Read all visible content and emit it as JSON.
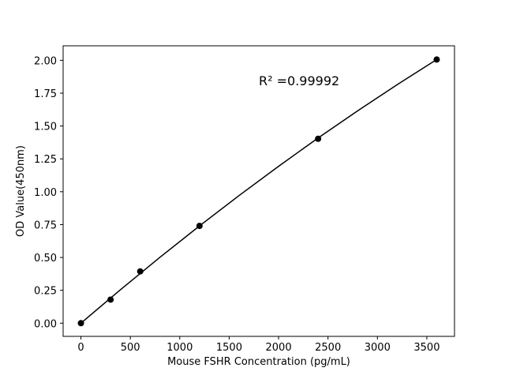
{
  "chart_data": {
    "type": "line",
    "xlabel": "Mouse FSHR Concentration (pg/mL)",
    "ylabel": "OD Value(450nm)",
    "annotation": "R² =0.99992",
    "x": [
      0,
      300,
      600,
      1200,
      2400,
      3600
    ],
    "values": [
      0,
      0.179,
      0.394,
      0.74,
      1.403,
      2.006
    ],
    "fit_x": [
      0,
      400,
      800,
      1200,
      1600,
      2000,
      2400,
      2800,
      3200,
      3600
    ],
    "fit_values": [
      0,
      0.2546,
      0.5013,
      0.74,
      0.9708,
      1.1937,
      1.409,
      1.6157,
      1.8149,
      2.006
    ],
    "color": "#000000",
    "xlim": [
      -180,
      3780
    ],
    "ylim": [
      -0.1005,
      2.1105
    ],
    "xticks": [
      0,
      500,
      1000,
      1500,
      2000,
      2500,
      3000,
      3500
    ],
    "yticks": [
      {
        "value": 0,
        "label": "0.00"
      },
      {
        "value": 0.25,
        "label": "0.25"
      },
      {
        "value": 0.5,
        "label": "0.50"
      },
      {
        "value": 0.75,
        "label": "0.75"
      },
      {
        "value": 1,
        "label": "1.00"
      },
      {
        "value": 1.25,
        "label": "1.25"
      },
      {
        "value": 1.5,
        "label": "1.50"
      },
      {
        "value": 1.75,
        "label": "1.75"
      },
      {
        "value": 2,
        "label": "2.00"
      }
    ],
    "grid": false
  }
}
